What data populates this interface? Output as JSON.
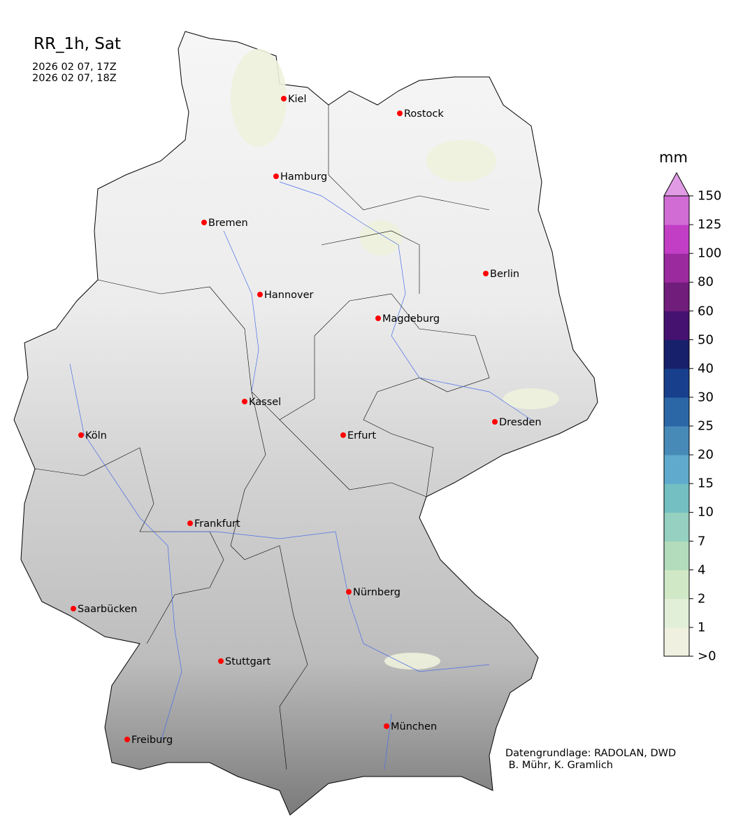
{
  "title": "RR_1h, Sat",
  "valid_from": "2026 02 07, 17Z",
  "valid_to": "2026 02 07, 18Z",
  "colorbar": {
    "unit": "mm",
    "ticks": [
      ">0",
      "1",
      "2",
      "4",
      "7",
      "10",
      "15",
      "20",
      "25",
      "30",
      "40",
      "50",
      "60",
      "80",
      "100",
      "125",
      "150"
    ],
    "colors": [
      "#f0f0e0",
      "#e2efd8",
      "#d0e8c6",
      "#b2dcbc",
      "#95d0c0",
      "#74bfc2",
      "#60abcd",
      "#478ab8",
      "#2b67a6",
      "#173f8c",
      "#17206a",
      "#451270",
      "#701d7c",
      "#9b2a9e",
      "#c13ec5",
      "#d16cd4"
    ],
    "extend_color": "#e09be4"
  },
  "cities": [
    "Kiel",
    "Rostock",
    "Hamburg",
    "Bremen",
    "Berlin",
    "Hannover",
    "Magdeburg",
    "Kassel",
    "Köln",
    "Erfurt",
    "Dresden",
    "Frankfurt",
    "Nürnberg",
    "Saarbücken",
    "Stuttgart",
    "Freiburg",
    "München"
  ],
  "credit": "Datengrundlage: RADOLAN, DWD\n B. Mühr, K. Gramlich"
}
